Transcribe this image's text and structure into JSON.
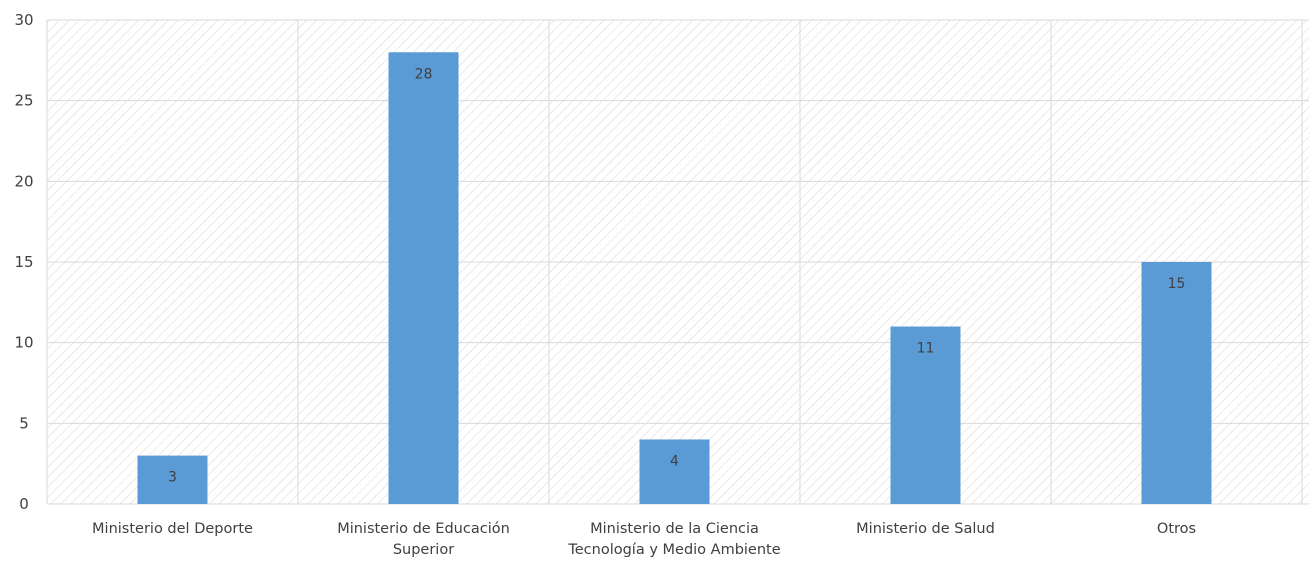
{
  "chart_data": {
    "type": "bar",
    "categories": [
      [
        "Ministerio del Deporte"
      ],
      [
        "Ministerio de Educación",
        "Superior"
      ],
      [
        "Ministerio de la Ciencia",
        "Tecnología y Medio Ambiente"
      ],
      [
        "Ministerio de Salud"
      ],
      [
        "Otros"
      ]
    ],
    "values": [
      3,
      28,
      4,
      11,
      15
    ],
    "data_labels": [
      "3",
      "28",
      "4",
      "11",
      "15"
    ],
    "title": "",
    "xlabel": "",
    "ylabel": "",
    "ylim": [
      0,
      30
    ],
    "yticks": [
      0,
      5,
      10,
      15,
      20,
      25,
      30
    ],
    "grid": true,
    "legend": "none",
    "colors": {
      "bar": "#5b9bd5",
      "grid": "#d9d9d9",
      "hatch": "#d9d9d9",
      "text": "#404040"
    }
  }
}
